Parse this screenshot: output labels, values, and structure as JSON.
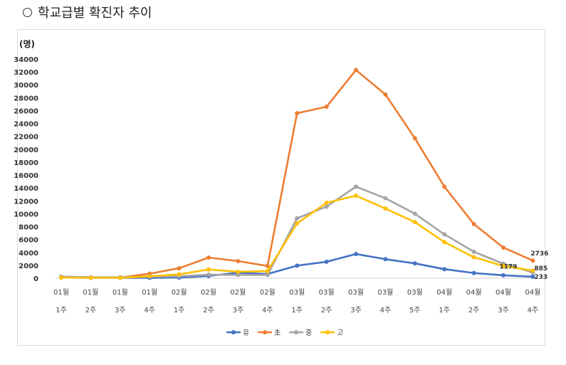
{
  "heading": {
    "bullet": "○",
    "text": "학교급별 확진자 추이"
  },
  "chart_data": {
    "type": "line",
    "unit_label": "(명)",
    "ylim": [
      0,
      34000
    ],
    "ytick_step": 2000,
    "grid": false,
    "legend_position": "bottom",
    "categories": [
      [
        "01월",
        "1주"
      ],
      [
        "01월",
        "2주"
      ],
      [
        "01월",
        "3주"
      ],
      [
        "01월",
        "4주"
      ],
      [
        "02월",
        "1주"
      ],
      [
        "02월",
        "2주"
      ],
      [
        "02월",
        "3주"
      ],
      [
        "02월",
        "4주"
      ],
      [
        "03월",
        "1주"
      ],
      [
        "03월",
        "2주"
      ],
      [
        "03월",
        "3주"
      ],
      [
        "03월",
        "4주"
      ],
      [
        "03월",
        "5주"
      ],
      [
        "04월",
        "1주"
      ],
      [
        "04월",
        "2주"
      ],
      [
        "04월",
        "3주"
      ],
      [
        "04월",
        "4주"
      ]
    ],
    "series": [
      {
        "name": "유",
        "color": "#4472C4",
        "values": [
          100,
          60,
          60,
          60,
          100,
          350,
          850,
          650,
          1950,
          2550,
          3750,
          2950,
          2300,
          1400,
          800,
          450,
          233
        ]
      },
      {
        "name": "초",
        "color": "#ED7D31",
        "values": [
          150,
          100,
          100,
          700,
          1550,
          3200,
          2650,
          1900,
          25600,
          26600,
          32300,
          28500,
          21700,
          14200,
          8400,
          4750,
          2736
        ]
      },
      {
        "name": "중",
        "color": "#A5A5A5",
        "values": [
          250,
          150,
          150,
          250,
          300,
          550,
          500,
          500,
          9300,
          11100,
          14200,
          12400,
          10000,
          6800,
          4100,
          2250,
          885
        ]
      },
      {
        "name": "고",
        "color": "#FFC000",
        "values": [
          100,
          60,
          60,
          300,
          600,
          1350,
          1000,
          1100,
          8500,
          11700,
          12800,
          10800,
          8700,
          5600,
          3250,
          1900,
          1179
        ]
      }
    ],
    "data_labels": [
      {
        "series": 1,
        "index": 16,
        "text": "2736"
      },
      {
        "series": 3,
        "index": 16,
        "text": "1179"
      },
      {
        "series": 2,
        "index": 16,
        "text": "885"
      },
      {
        "series": 0,
        "index": 16,
        "text": "233"
      }
    ]
  }
}
